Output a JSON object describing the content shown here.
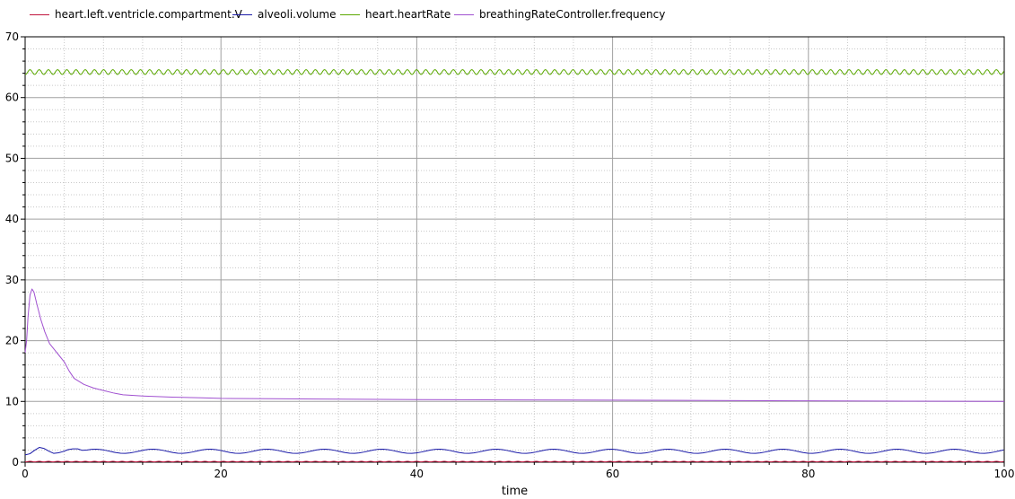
{
  "chart_data": {
    "type": "line",
    "title": "",
    "xlabel": "time",
    "ylabel": "",
    "xlim": [
      0,
      100
    ],
    "ylim": [
      0,
      70
    ],
    "xticks": [
      "0",
      "20",
      "40",
      "60",
      "80",
      "100"
    ],
    "yticks": [
      "0",
      "10",
      "20",
      "30",
      "40",
      "50",
      "60",
      "70"
    ],
    "grid": true,
    "legend_position": "top",
    "series": [
      {
        "name": "heart.left.ventricle.compartment.V",
        "color": "#c0143c",
        "pattern": {
          "kind": "oscillation",
          "base": 0.1,
          "amplitude": 0.05,
          "period": 0.94
        },
        "x": [
          0,
          100
        ],
        "y": [
          0.1,
          0.1
        ]
      },
      {
        "name": "alveoli.volume",
        "color": "#1a1aa8",
        "pattern": {
          "kind": "oscillation",
          "base": 1.8,
          "amplitude": 0.35,
          "period": 5.85
        },
        "x": [
          0,
          0.5,
          1,
          1.3,
          1.7,
          2.3,
          3,
          3.8,
          4.6,
          5.4,
          6.3
        ],
        "y": [
          1.2,
          1.4,
          2.0,
          2.4,
          2.5,
          1.9,
          1.4,
          1.7,
          2.2,
          2.2,
          1.7
        ]
      },
      {
        "name": "heart.heartRate",
        "color": "#5aa800",
        "pattern": {
          "kind": "oscillation",
          "base": 64.2,
          "amplitude": 0.4,
          "period": 0.94
        },
        "x": [
          0,
          100
        ],
        "y": [
          64.2,
          64.2
        ]
      },
      {
        "name": "breathingRateController.frequency",
        "color": "#a050d0",
        "pattern": {
          "kind": "smooth"
        },
        "x": [
          0,
          0.15,
          0.3,
          0.5,
          0.7,
          0.9,
          1.2,
          1.6,
          2.0,
          2.5,
          3.0,
          3.5,
          4.0,
          4.5,
          5.0,
          6.0,
          7.0,
          8.0,
          9.0,
          10.0,
          12.0,
          15.0,
          18.0,
          20.0,
          25.0,
          30.0,
          40.0,
          50.0,
          60.0,
          70.0,
          80.0,
          90.0,
          100.0
        ],
        "y": [
          18.0,
          20.0,
          24.0,
          27.5,
          28.5,
          28.0,
          26.0,
          23.5,
          21.5,
          19.5,
          18.5,
          17.5,
          16.5,
          15.0,
          13.8,
          12.8,
          12.2,
          11.8,
          11.4,
          11.1,
          10.9,
          10.7,
          10.6,
          10.5,
          10.45,
          10.4,
          10.3,
          10.25,
          10.2,
          10.15,
          10.1,
          10.05,
          10.0
        ]
      }
    ]
  }
}
